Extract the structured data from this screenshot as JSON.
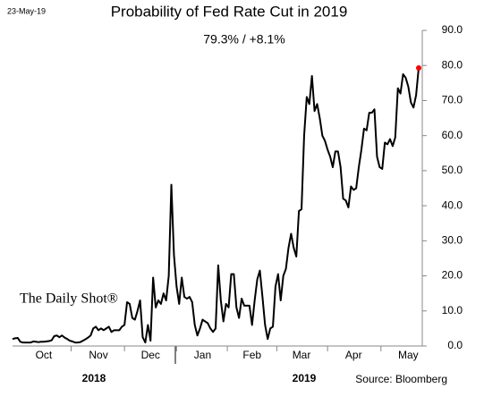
{
  "chart_data": {
    "type": "line",
    "date_label": "23-May-19",
    "title": "Probability of Fed Rate Cut in 2019",
    "subtitle": "79.3%  /  +8.1%",
    "watermark": "The Daily Shot®",
    "source": "Source: Bloomberg",
    "x_group_labels": [
      "2018",
      "2019"
    ],
    "categories": [
      null,
      null,
      null,
      null,
      null,
      null,
      null,
      null,
      null,
      null,
      null,
      null,
      "Oct",
      null,
      null,
      null,
      null,
      null,
      null,
      null,
      null,
      null,
      null,
      null,
      null,
      null,
      null,
      null,
      null,
      null,
      null,
      null,
      null,
      "Nov",
      null,
      null,
      null,
      null,
      null,
      null,
      null,
      null,
      null,
      null,
      null,
      null,
      null,
      null,
      null,
      null,
      null,
      null,
      null,
      "Dec",
      null,
      null,
      null,
      null,
      null,
      null,
      null,
      null,
      null,
      null,
      null,
      null,
      null,
      null,
      null,
      null,
      null,
      null,
      null,
      "Jan",
      null,
      null,
      null,
      null,
      null,
      null,
      null,
      null,
      null,
      null,
      null,
      null,
      null,
      null,
      null,
      null,
      null,
      null,
      "Feb",
      null,
      null,
      null,
      null,
      null,
      null,
      null,
      null,
      null,
      null,
      null,
      null,
      null,
      null,
      null,
      null,
      null,
      null,
      "Mar",
      null,
      null,
      null,
      null,
      null,
      null,
      null,
      null,
      null,
      null,
      null,
      null,
      null,
      null,
      null,
      null,
      null,
      null,
      null,
      "Apr",
      null,
      null,
      null,
      null,
      null,
      null,
      null,
      null,
      null,
      null,
      null,
      null,
      null,
      null,
      null,
      null,
      null,
      null,
      null,
      null,
      "May",
      null,
      null,
      null,
      null
    ],
    "series": [
      {
        "color": "#000000",
        "highlight_color": "#ff0000",
        "values": [
          2,
          2.2,
          2.3,
          1.2,
          1,
          1,
          1,
          1,
          1.3,
          1.2,
          1.1,
          1.2,
          1.2,
          1.3,
          1.4,
          1.6,
          2.8,
          3,
          2.5,
          3,
          2.4,
          2,
          1.5,
          1.3,
          1,
          1,
          1.1,
          1.5,
          1.9,
          2.4,
          3,
          5,
          5.5,
          4.5,
          5,
          4.5,
          5,
          5.5,
          4,
          4.5,
          4.5,
          4.5,
          5.5,
          6,
          12.5,
          12,
          8,
          7.5,
          10,
          13,
          2.5,
          1,
          6,
          1.5,
          19.5,
          11,
          13,
          12,
          15,
          13,
          20,
          46,
          26,
          17,
          12,
          19.5,
          14,
          13.5,
          14,
          12.5,
          6,
          3,
          5,
          7.5,
          7,
          6.5,
          5,
          4,
          5,
          23,
          13,
          7,
          12,
          11,
          20.5,
          20.5,
          11,
          8,
          13.5,
          11.5,
          11.5,
          11.5,
          6,
          13,
          19,
          21.5,
          14,
          6,
          2,
          5,
          5.5,
          17,
          20.5,
          13,
          20,
          22,
          28,
          32,
          28,
          25.5,
          38.5,
          39,
          60,
          71,
          69,
          77,
          67,
          69,
          65,
          60,
          58.5,
          56,
          54,
          51,
          55.5,
          55.5,
          51,
          42,
          41.5,
          39.5,
          45.5,
          44.5,
          45,
          51,
          56,
          62,
          61.5,
          66.5,
          66.5,
          67.5,
          54,
          51,
          50.5,
          58,
          57.5,
          59,
          57,
          59.5,
          73.5,
          72,
          77.5,
          76.5,
          74,
          69.5,
          68,
          71.5,
          79.3
        ]
      }
    ],
    "ylim": [
      0,
      90
    ],
    "yticks": [
      {
        "value": 0,
        "label": "0.0"
      },
      {
        "value": 10,
        "label": "10.0"
      },
      {
        "value": 20,
        "label": "20.0"
      },
      {
        "value": 30,
        "label": "30.0"
      },
      {
        "value": 40,
        "label": "40.0"
      },
      {
        "value": 50,
        "label": "50.0"
      },
      {
        "value": 60,
        "label": "60.0"
      },
      {
        "value": 70,
        "label": "70.0"
      },
      {
        "value": 80,
        "label": "80.0"
      },
      {
        "value": 90,
        "label": "90.0"
      }
    ]
  }
}
